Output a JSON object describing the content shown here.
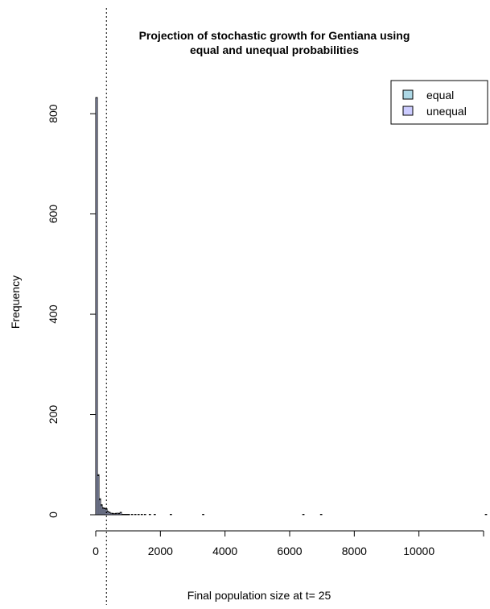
{
  "chart_data": {
    "type": "bar",
    "title_lines": [
      "Projection of stochastic growth for Gentiana using",
      "equal and unequal probabilities"
    ],
    "xlabel": "Final population size at t= 25",
    "ylabel": "Frequency",
    "xlim": [
      0,
      12000
    ],
    "ylim": [
      0,
      850
    ],
    "x_ticks": [
      0,
      2000,
      4000,
      6000,
      8000,
      10000
    ],
    "x_tick_labels": [
      "0",
      "2000",
      "4000",
      "6000",
      "8000",
      "10000"
    ],
    "y_ticks": [
      0,
      200,
      400,
      600,
      800
    ],
    "y_tick_labels": [
      "0",
      "200",
      "400",
      "600",
      "800"
    ],
    "reference_line_x": 330,
    "grid": false,
    "legend": {
      "position": "top-right",
      "entries": [
        {
          "label": "equal",
          "color": "#ADD8E6"
        },
        {
          "label": "unequal",
          "color": "#CCCCFF"
        }
      ]
    },
    "series": [
      {
        "name": "equal",
        "color": "#ADD8E6",
        "bin_width": 50,
        "bins": [
          {
            "x": 0,
            "y": 832
          },
          {
            "x": 50,
            "y": 80
          },
          {
            "x": 100,
            "y": 32
          },
          {
            "x": 150,
            "y": 20
          },
          {
            "x": 200,
            "y": 14
          },
          {
            "x": 250,
            "y": 13
          },
          {
            "x": 300,
            "y": 12
          },
          {
            "x": 350,
            "y": 7
          },
          {
            "x": 400,
            "y": 5
          },
          {
            "x": 450,
            "y": 3
          },
          {
            "x": 500,
            "y": 3
          },
          {
            "x": 550,
            "y": 2
          },
          {
            "x": 600,
            "y": 3
          },
          {
            "x": 650,
            "y": 3
          },
          {
            "x": 700,
            "y": 3
          },
          {
            "x": 750,
            "y": 5
          },
          {
            "x": 800,
            "y": 1
          },
          {
            "x": 850,
            "y": 1
          },
          {
            "x": 900,
            "y": 1
          },
          {
            "x": 950,
            "y": 1
          },
          {
            "x": 1000,
            "y": 1
          },
          {
            "x": 1100,
            "y": 1
          },
          {
            "x": 1200,
            "y": 1
          },
          {
            "x": 1300,
            "y": 1
          },
          {
            "x": 1400,
            "y": 1
          },
          {
            "x": 1500,
            "y": 1
          },
          {
            "x": 1650,
            "y": 1
          },
          {
            "x": 1800,
            "y": 1
          },
          {
            "x": 2300,
            "y": 1
          },
          {
            "x": 3300,
            "y": 1
          },
          {
            "x": 6400,
            "y": 1
          },
          {
            "x": 6950,
            "y": 1
          },
          {
            "x": 12050,
            "y": 1
          }
        ]
      },
      {
        "name": "unequal",
        "color": "#CCCCFF",
        "bin_width": 50,
        "bins": [
          {
            "x": 0,
            "y": 832
          },
          {
            "x": 50,
            "y": 78
          },
          {
            "x": 100,
            "y": 30
          },
          {
            "x": 150,
            "y": 18
          },
          {
            "x": 200,
            "y": 13
          },
          {
            "x": 250,
            "y": 12
          },
          {
            "x": 300,
            "y": 10
          },
          {
            "x": 350,
            "y": 6
          },
          {
            "x": 400,
            "y": 4
          },
          {
            "x": 450,
            "y": 3
          },
          {
            "x": 500,
            "y": 2
          },
          {
            "x": 550,
            "y": 2
          },
          {
            "x": 600,
            "y": 2
          },
          {
            "x": 650,
            "y": 3
          },
          {
            "x": 700,
            "y": 2
          },
          {
            "x": 750,
            "y": 4
          },
          {
            "x": 800,
            "y": 1
          },
          {
            "x": 850,
            "y": 1
          },
          {
            "x": 900,
            "y": 1
          },
          {
            "x": 950,
            "y": 1
          },
          {
            "x": 1000,
            "y": 1
          }
        ]
      }
    ]
  }
}
